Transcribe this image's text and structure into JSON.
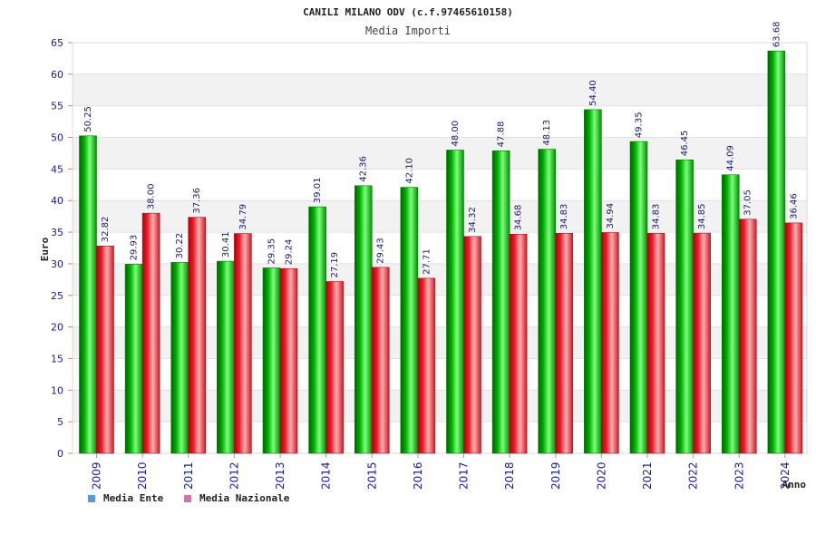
{
  "chart_data": {
    "type": "bar",
    "title": "CANILI MILANO ODV (c.f.97465610158)",
    "subtitle": "Media Importi",
    "xlabel": "Anno",
    "ylabel": "Euro",
    "ylim": [
      0,
      65
    ],
    "ytick_step": 5,
    "grid": "horizontal bands",
    "legend_position": "bottom-left",
    "value_format": "2 decimals",
    "categories": [
      "2009",
      "2010",
      "2011",
      "2012",
      "2013",
      "2014",
      "2015",
      "2016",
      "2017",
      "2018",
      "2019",
      "2020",
      "2021",
      "2022",
      "2023",
      "2024"
    ],
    "series": [
      {
        "name": "Media Ente",
        "bar_color": "#00c000",
        "legend_color": "#5b9bd5",
        "values": [
          50.25,
          29.93,
          30.22,
          30.41,
          29.35,
          39.01,
          42.36,
          42.1,
          48.0,
          47.88,
          48.13,
          54.4,
          49.35,
          46.45,
          44.09,
          63.68
        ]
      },
      {
        "name": "Media Nazionale",
        "bar_color": "#e8202a",
        "legend_color": "#d673a6",
        "values": [
          32.82,
          38.0,
          37.36,
          34.79,
          29.24,
          27.19,
          29.43,
          27.71,
          34.32,
          34.68,
          34.83,
          34.94,
          34.83,
          34.85,
          37.05,
          36.46
        ]
      }
    ]
  }
}
